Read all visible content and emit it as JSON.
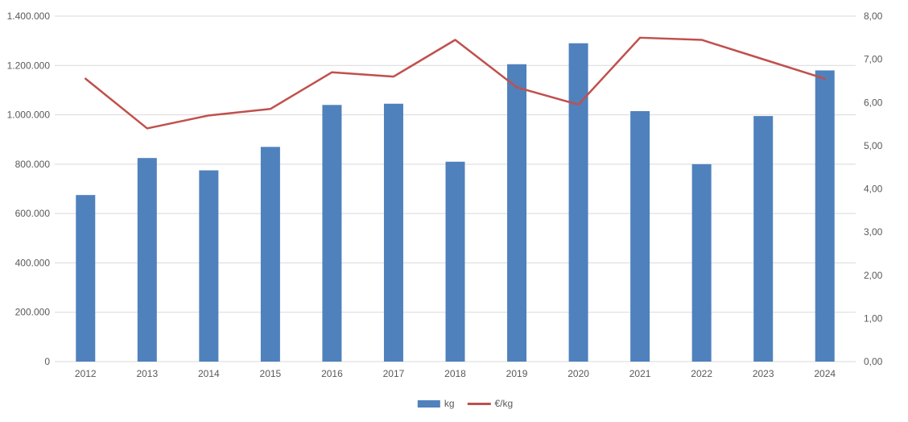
{
  "chart_data": {
    "type": "combo-bar-line",
    "categories": [
      "2012",
      "2013",
      "2014",
      "2015",
      "2016",
      "2017",
      "2018",
      "2019",
      "2020",
      "2021",
      "2022",
      "2023",
      "2024"
    ],
    "series": [
      {
        "name": "kg",
        "type": "bar",
        "axis": "left",
        "color": "#4f81bd",
        "values": [
          675000,
          825000,
          775000,
          870000,
          1040000,
          1045000,
          810000,
          1205000,
          1290000,
          1015000,
          800000,
          995000,
          1180000
        ]
      },
      {
        "name": "€/kg",
        "type": "line",
        "axis": "right",
        "color": "#c0504d",
        "values": [
          6.55,
          5.4,
          5.7,
          5.85,
          6.7,
          6.6,
          7.45,
          6.35,
          5.95,
          7.5,
          7.45,
          7.0,
          6.55
        ]
      }
    ],
    "left_axis": {
      "min": 0,
      "max": 1400000,
      "step": 200000,
      "tick_labels": [
        "0",
        "200.000",
        "400.000",
        "600.000",
        "800.000",
        "1.000.000",
        "1.200.000",
        "1.400.000"
      ]
    },
    "right_axis": {
      "min": 0,
      "max": 8,
      "step": 1,
      "tick_labels": [
        "0,00",
        "1,00",
        "2,00",
        "3,00",
        "4,00",
        "5,00",
        "6,00",
        "7,00",
        "8,00"
      ]
    },
    "title": "",
    "xlabel": "",
    "ylabel": "",
    "grid": true,
    "legend_position": "bottom-center"
  },
  "legend": {
    "items": [
      {
        "label": "kg",
        "marker": "bar-swatch",
        "color": "#4f81bd"
      },
      {
        "label": "€/kg",
        "marker": "line-swatch",
        "color": "#c0504d"
      }
    ]
  },
  "colors": {
    "background": "#ffffff",
    "gridline": "#d9d9d9",
    "axis_text": "#595959",
    "bar": "#4f81bd",
    "line": "#c0504d"
  }
}
